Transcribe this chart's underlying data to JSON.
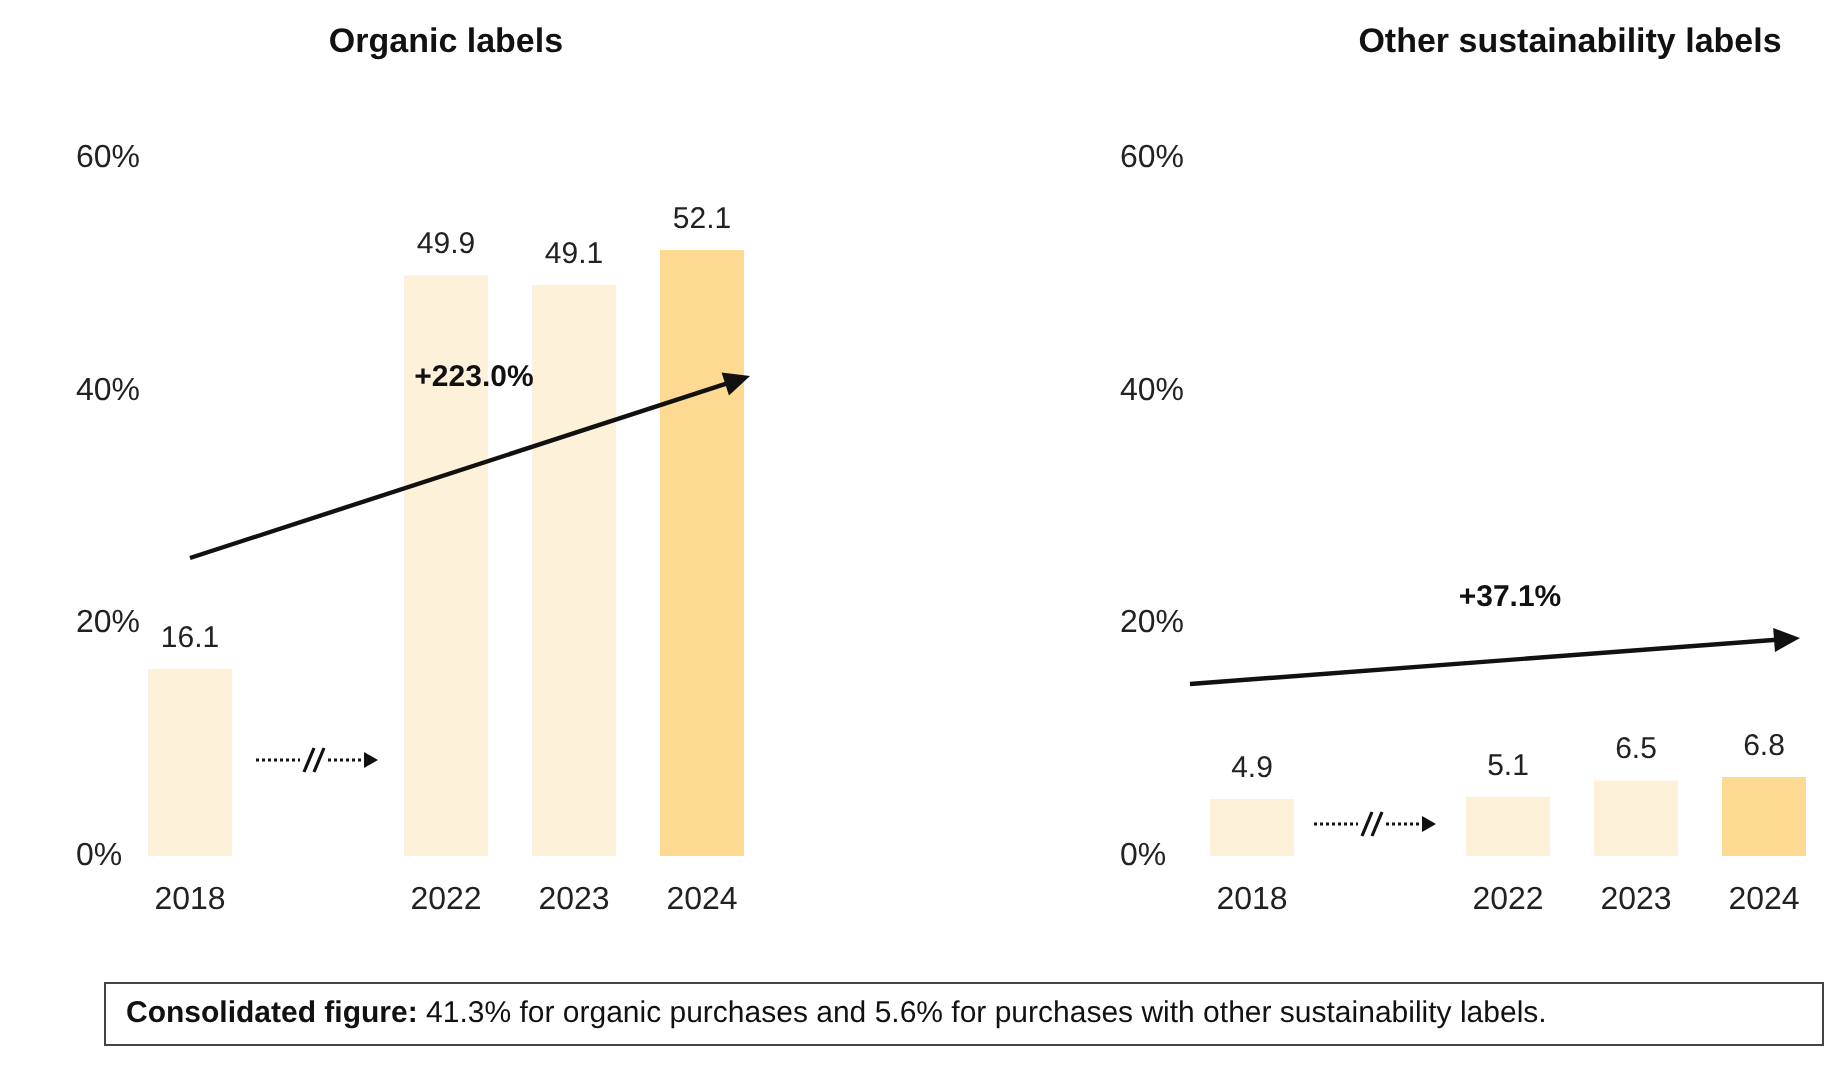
{
  "chart_data": [
    {
      "type": "bar",
      "title": "Organic labels",
      "categories": [
        "2018",
        null,
        "2022",
        "2023",
        "2024"
      ],
      "values": [
        16.1,
        null,
        49.9,
        49.1,
        52.1
      ],
      "colors": [
        "#fdf1da",
        null,
        "#fdf1da",
        "#fdf1da",
        "#fed992"
      ],
      "ylim": [
        0,
        60
      ],
      "yticks": [
        {
          "value": 0,
          "label": "0%"
        },
        {
          "value": 20,
          "label": "20%"
        },
        {
          "value": 40,
          "label": "40%"
        },
        {
          "value": 60,
          "label": "60%"
        }
      ],
      "data_labels": true,
      "annotations": [
        "+223.0%",
        "Consolidated figure: 41.3% for organic purchases and 5.6% for purchases with other sustainability labels."
      ]
    },
    {
      "type": "bar",
      "title": "Other sustainability labels",
      "categories": [
        "2018",
        null,
        "2022",
        "2023",
        "2024"
      ],
      "values": [
        4.9,
        null,
        5.1,
        6.5,
        6.8
      ],
      "colors": [
        "#fdf1da",
        null,
        "#fdf1da",
        "#fdf1da",
        "#fed992"
      ],
      "ylim": [
        0,
        60
      ],
      "yticks": [
        {
          "value": 0,
          "label": "0%"
        },
        {
          "value": 20,
          "label": "20%"
        },
        {
          "value": 40,
          "label": "40%"
        },
        {
          "value": 60,
          "label": "60%"
        }
      ],
      "data_labels": true,
      "annotations": [
        "+37.1%"
      ]
    }
  ]
}
